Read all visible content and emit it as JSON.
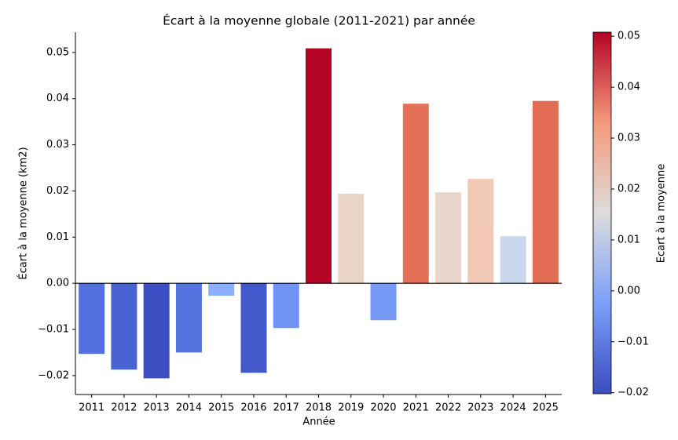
{
  "chart_data": {
    "type": "bar",
    "title": "Écart à la moyenne globale (2011-2021) par année",
    "x_label": "Année",
    "y_label": "Écart à la moyenne (km2)",
    "categories": [
      "2011",
      "2012",
      "2013",
      "2014",
      "2015",
      "2016",
      "2017",
      "2018",
      "2019",
      "2020",
      "2021",
      "2022",
      "2023",
      "2024",
      "2025"
    ],
    "values": [
      -0.0153,
      -0.0187,
      -0.0206,
      -0.015,
      -0.0027,
      -0.0194,
      -0.0097,
      0.0509,
      0.0194,
      -0.008,
      0.0389,
      0.0197,
      0.0226,
      0.0102,
      0.0395
    ],
    "colors": [
      "#5470de",
      "#4a63d3",
      "#3c4ec2",
      "#5572df",
      "#8db0fe",
      "#4358cb",
      "#6f92f3",
      "#b40426",
      "#ead4c8",
      "#779af7",
      "#e57058",
      "#e9d5cb",
      "#f2c9b4",
      "#cad8ef",
      "#e36c55"
    ],
    "ylim": [
      -0.0241,
      0.0544
    ],
    "yticks": [
      {
        "value": -0.02,
        "label": "−0.02"
      },
      {
        "value": -0.01,
        "label": "−0.01"
      },
      {
        "value": 0,
        "label": "0.00"
      },
      0.01,
      0.02,
      0.03,
      0.04,
      0.05
    ],
    "colorbar": {
      "label": "Ecart à la moyenne",
      "lim": [
        -0.0202,
        0.0508
      ],
      "ticks": [
        {
          "value": -0.02,
          "label": "−0.02"
        },
        {
          "value": -0.01,
          "label": "−0.01"
        },
        {
          "value": 0,
          "label": "0.00"
        },
        0.01,
        0.02,
        0.03,
        0.04,
        0.05
      ]
    }
  }
}
